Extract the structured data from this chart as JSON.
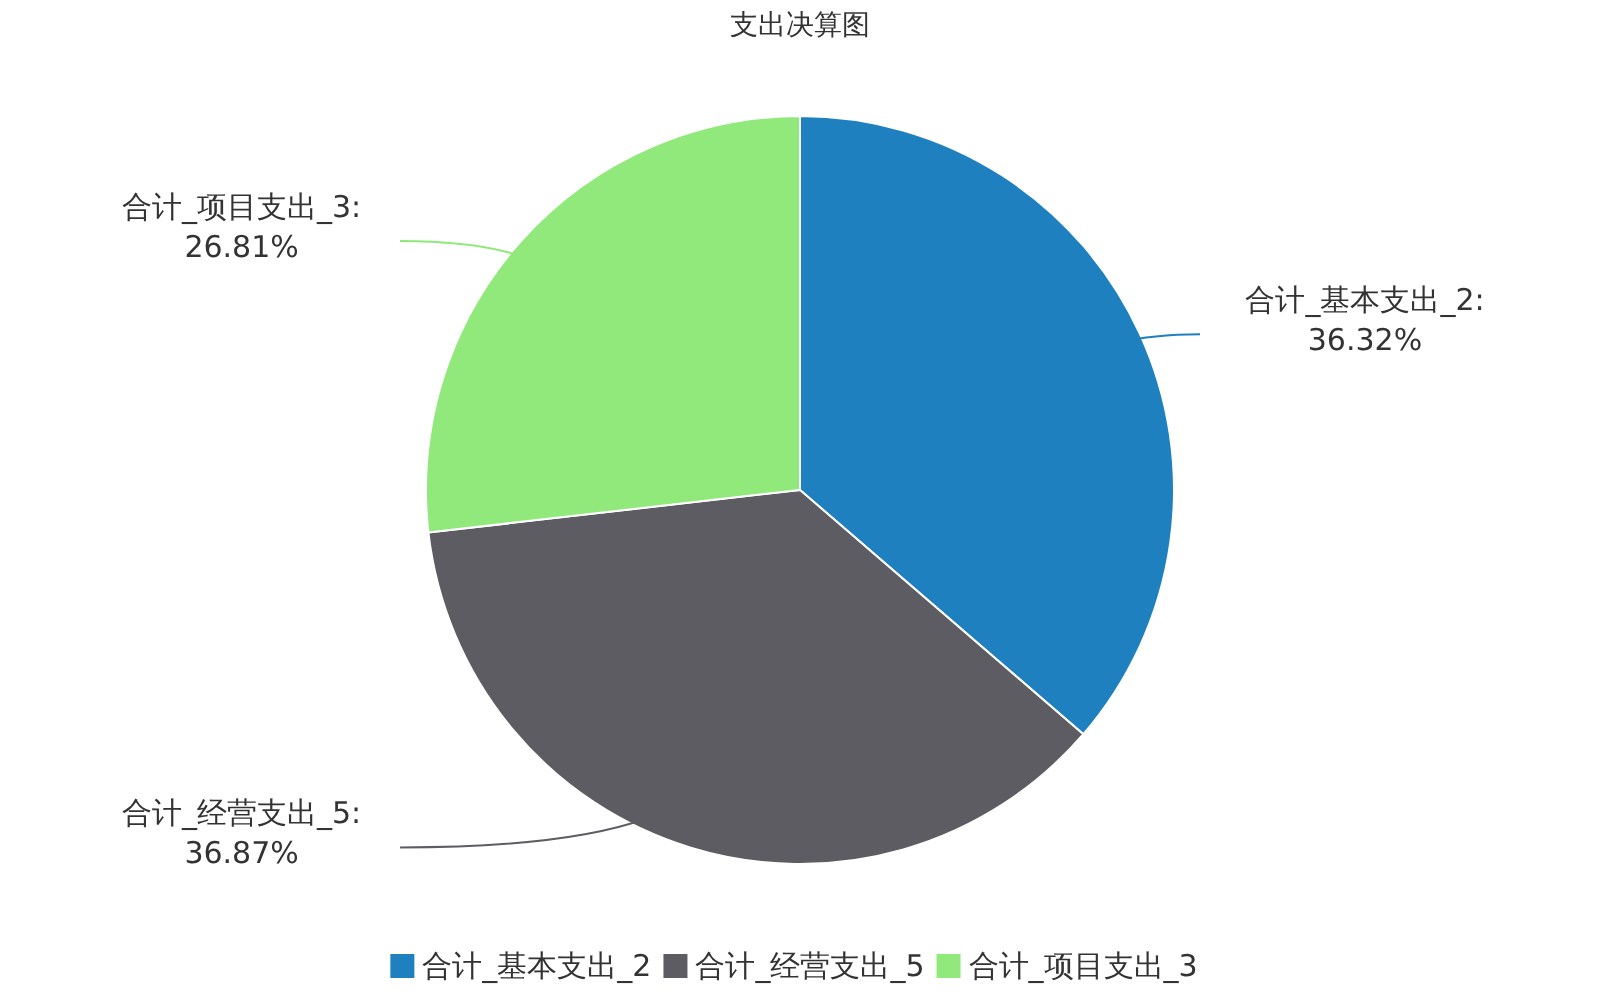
{
  "chart_data": {
    "type": "pie",
    "title": "支出决算图",
    "categories": [
      "合计_基本支出_2",
      "合计_经营支出_5",
      "合计_项目支出_3"
    ],
    "values": [
      36.32,
      36.87,
      26.81
    ],
    "colors": [
      "#1f80bf",
      "#5e5c63",
      "#90e97a"
    ],
    "value_labels": [
      "合计_基本支出_2:\n36.32%",
      "合计_经营支出_5:\n36.87%",
      "合计_项目支出_3:\n26.81%"
    ],
    "legend": "bottom"
  }
}
